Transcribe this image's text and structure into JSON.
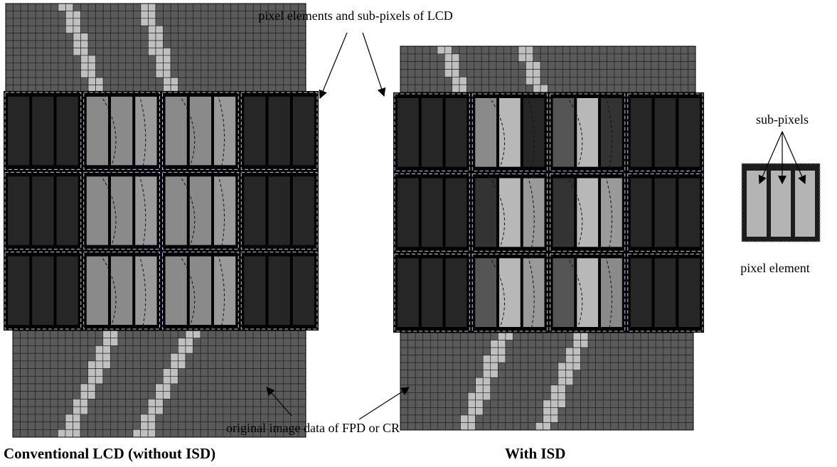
{
  "labels": {
    "top_callout": "pixel elements and sub-pixels of LCD",
    "subpixels": "sub-pixels",
    "pixel_element": "pixel element",
    "bottom_callout": "original image data of FPD or CR"
  },
  "captions": {
    "left": "Conventional LCD (without ISD)",
    "right": "With ISD"
  }
}
